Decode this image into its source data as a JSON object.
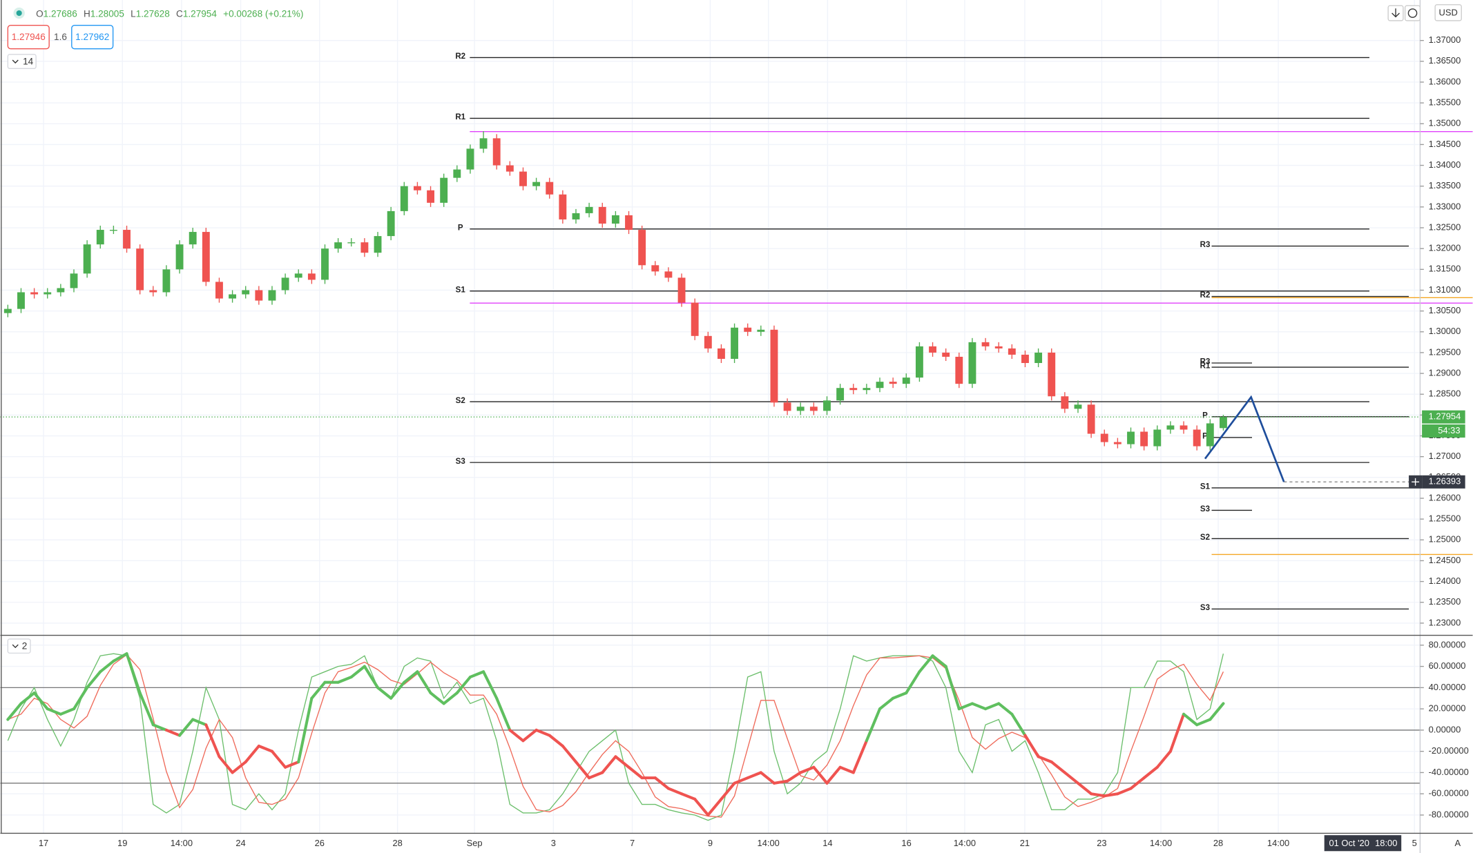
{
  "header": {
    "ohlc_labels": [
      "O",
      "H",
      "L",
      "C"
    ],
    "change": "+0.00268 (+0.21%)",
    "sell": "1.27946",
    "spread": "1.6",
    "buy": "1.27962",
    "indicator_count": "14",
    "currency": "USD",
    "auto": "A"
  },
  "chart_data": [
    {
      "type": "candlestick",
      "up_color": "#4caf50",
      "down_color": "#ef5350",
      "open": [
        1.3045,
        1.3055,
        1.3095,
        1.309,
        1.3095,
        1.3105,
        1.314,
        1.321,
        1.3245,
        1.3245,
        1.32,
        1.31,
        1.3095,
        1.315,
        1.321,
        1.324,
        1.312,
        1.308,
        1.309,
        1.31,
        1.3075,
        1.31,
        1.313,
        1.314,
        1.3125,
        1.32,
        1.3215,
        1.3215,
        1.319,
        1.323,
        1.329,
        1.335,
        1.334,
        1.331,
        1.337,
        1.339,
        1.344,
        1.3465,
        1.34,
        1.3385,
        1.335,
        1.336,
        1.333,
        1.327,
        1.3285,
        1.33,
        1.326,
        1.328,
        1.3245,
        1.316,
        1.3145,
        1.313,
        1.307,
        1.299,
        1.296,
        1.2935,
        1.301,
        1.3,
        1.3005,
        1.283,
        1.281,
        1.282,
        1.281,
        1.2835,
        1.2865,
        1.286,
        1.2865,
        1.288,
        1.2875,
        1.289,
        1.2965,
        1.295,
        1.294,
        1.2875,
        1.2975,
        1.2965,
        1.296,
        1.2945,
        1.2925,
        1.295,
        1.2845,
        1.2815,
        1.2825,
        1.2755,
        1.2735,
        1.273,
        1.276,
        1.2725,
        1.2765,
        1.2775,
        1.2765,
        1.2725,
        1.27686
      ],
      "high": [
        1.3065,
        1.3105,
        1.3105,
        1.3105,
        1.3115,
        1.315,
        1.322,
        1.3255,
        1.3255,
        1.3255,
        1.321,
        1.311,
        1.316,
        1.322,
        1.325,
        1.325,
        1.313,
        1.31,
        1.311,
        1.311,
        1.311,
        1.314,
        1.315,
        1.315,
        1.321,
        1.3225,
        1.3225,
        1.3225,
        1.324,
        1.33,
        1.336,
        1.336,
        1.335,
        1.338,
        1.34,
        1.345,
        1.3482,
        1.3475,
        1.341,
        1.3395,
        1.337,
        1.337,
        1.334,
        1.3295,
        1.331,
        1.331,
        1.329,
        1.329,
        1.3255,
        1.317,
        1.3155,
        1.314,
        1.308,
        1.3,
        1.297,
        1.302,
        1.302,
        1.3015,
        1.3015,
        1.284,
        1.283,
        1.283,
        1.2845,
        1.2875,
        1.2875,
        1.2875,
        1.289,
        1.289,
        1.29,
        1.2975,
        1.2975,
        1.296,
        1.295,
        1.2985,
        1.2985,
        1.2975,
        1.297,
        1.2955,
        1.296,
        1.296,
        1.2855,
        1.2835,
        1.2835,
        1.2765,
        1.2745,
        1.277,
        1.277,
        1.2775,
        1.2785,
        1.2785,
        1.2775,
        1.279,
        1.28005
      ],
      "low": [
        1.3035,
        1.3045,
        1.308,
        1.308,
        1.3085,
        1.3095,
        1.313,
        1.32,
        1.3235,
        1.319,
        1.309,
        1.3085,
        1.3085,
        1.314,
        1.32,
        1.311,
        1.307,
        1.307,
        1.308,
        1.3065,
        1.3065,
        1.309,
        1.312,
        1.3115,
        1.3115,
        1.319,
        1.3205,
        1.318,
        1.318,
        1.322,
        1.328,
        1.333,
        1.33,
        1.33,
        1.336,
        1.338,
        1.343,
        1.339,
        1.3375,
        1.334,
        1.334,
        1.332,
        1.326,
        1.326,
        1.3275,
        1.325,
        1.325,
        1.3235,
        1.315,
        1.3135,
        1.312,
        1.306,
        1.298,
        1.295,
        1.2925,
        1.2925,
        1.299,
        1.299,
        1.282,
        1.28,
        1.28,
        1.28,
        1.28,
        1.2825,
        1.285,
        1.285,
        1.2855,
        1.2865,
        1.2865,
        1.288,
        1.294,
        1.293,
        1.2865,
        1.2865,
        1.2955,
        1.295,
        1.2935,
        1.2915,
        1.2915,
        1.2835,
        1.2805,
        1.2805,
        1.2745,
        1.2725,
        1.272,
        1.272,
        1.2715,
        1.2715,
        1.2755,
        1.2755,
        1.2715,
        1.2715,
        1.27628
      ],
      "close": [
        1.3055,
        1.3095,
        1.309,
        1.3095,
        1.3105,
        1.314,
        1.321,
        1.3245,
        1.3245,
        1.32,
        1.31,
        1.3095,
        1.315,
        1.321,
        1.324,
        1.312,
        1.308,
        1.309,
        1.31,
        1.3075,
        1.31,
        1.313,
        1.314,
        1.3125,
        1.32,
        1.3215,
        1.3215,
        1.319,
        1.323,
        1.329,
        1.335,
        1.334,
        1.331,
        1.337,
        1.339,
        1.344,
        1.3465,
        1.34,
        1.3385,
        1.335,
        1.336,
        1.333,
        1.327,
        1.3285,
        1.33,
        1.326,
        1.328,
        1.3245,
        1.316,
        1.3145,
        1.313,
        1.307,
        1.299,
        1.296,
        1.2935,
        1.301,
        1.3,
        1.3005,
        1.283,
        1.281,
        1.282,
        1.281,
        1.2835,
        1.2865,
        1.286,
        1.2865,
        1.288,
        1.2875,
        1.289,
        1.2965,
        1.295,
        1.294,
        1.2875,
        1.2975,
        1.2965,
        1.296,
        1.2945,
        1.2925,
        1.295,
        1.2845,
        1.2815,
        1.2825,
        1.2755,
        1.2735,
        1.273,
        1.276,
        1.2725,
        1.2765,
        1.2775,
        1.2765,
        1.2725,
        1.278,
        1.27954
      ],
      "countdown": "54:33",
      "ylim": [
        1.2273,
        1.3786
      ],
      "yticks": [
        {
          "value": 1.23,
          "label": "1.23000"
        },
        {
          "value": 1.235,
          "label": "1.23500"
        },
        {
          "value": 1.24,
          "label": "1.24000"
        },
        {
          "value": 1.245,
          "label": "1.24500"
        },
        {
          "value": 1.25,
          "label": "1.25000"
        },
        {
          "value": 1.255,
          "label": "1.25500"
        },
        {
          "value": 1.26,
          "label": "1.26000"
        },
        {
          "value": 1.265,
          "label": "1.26500"
        },
        {
          "value": 1.27,
          "label": "1.27000"
        },
        {
          "value": 1.275,
          "label": "1.27500"
        },
        {
          "value": 1.28,
          "label": "1.28000"
        },
        {
          "value": 1.285,
          "label": "1.28500"
        },
        {
          "value": 1.29,
          "label": "1.29000"
        },
        {
          "value": 1.295,
          "label": "1.29500"
        },
        {
          "value": 1.3,
          "label": "1.30000"
        },
        {
          "value": 1.305,
          "label": "1.30500"
        },
        {
          "value": 1.31,
          "label": "1.31000"
        },
        {
          "value": 1.315,
          "label": "1.31500"
        },
        {
          "value": 1.32,
          "label": "1.32000"
        },
        {
          "value": 1.325,
          "label": "1.32500"
        },
        {
          "value": 1.33,
          "label": "1.33000"
        },
        {
          "value": 1.335,
          "label": "1.33500"
        },
        {
          "value": 1.34,
          "label": "1.34000"
        },
        {
          "value": 1.345,
          "label": "1.34500"
        },
        {
          "value": 1.35,
          "label": "1.35000"
        },
        {
          "value": 1.355,
          "label": "1.35500"
        },
        {
          "value": 1.36,
          "label": "1.36000"
        },
        {
          "value": 1.365,
          "label": "1.36500"
        },
        {
          "value": 1.37,
          "label": "1.37000"
        }
      ],
      "grid": true,
      "x_labels": [
        "17",
        "19",
        "14:00",
        "24",
        "26",
        "28",
        "Sep",
        "3",
        "7",
        "9",
        "14:00",
        "14",
        "16",
        "14:00",
        "21",
        "23",
        "14:00",
        "28",
        "14:00",
        "5"
      ],
      "x_cursor_labels": [
        "01 Oct '20",
        "18:00"
      ],
      "pivots": [
        [
          {
            "name": "R2",
            "value": 1.3659
          },
          {
            "name": "R1",
            "value": 1.3513
          },
          {
            "name": "P",
            "value": 1.3247
          },
          {
            "name": "S1",
            "value": 1.3098
          },
          {
            "name": "S2",
            "value": 1.2832
          },
          {
            "name": "S3",
            "value": 1.2686
          }
        ],
        [
          {
            "name": "R3",
            "value": 1.3206
          },
          {
            "name": "R2",
            "value": 1.3085
          },
          {
            "name": "R1",
            "value": 1.2915
          },
          {
            "name": "P",
            "value": 1.2796
          },
          {
            "name": "S1",
            "value": 1.2625
          },
          {
            "name": "S2",
            "value": 1.2503
          },
          {
            "name": "S3",
            "value": 1.2334
          }
        ],
        [
          {
            "name": "R3",
            "value": 1.2925
          },
          {
            "name": "P",
            "value": 1.2746
          },
          {
            "name": "S3",
            "value": 1.2571
          }
        ]
      ],
      "pivot_color": "#222222",
      "level_lines": [
        {
          "value": 1.3481,
          "color": "#e040fb"
        },
        {
          "value": 1.3069,
          "color": "#e040fb"
        },
        {
          "value": 1.3082,
          "color": "#f5a623"
        },
        {
          "value": 1.2465,
          "color": "#f5a623"
        }
      ],
      "drawing": {
        "color": "#1f4e9c",
        "values": [
          1.2695,
          1.2843,
          1.26393
        ]
      }
    },
    {
      "type": "line",
      "pane_label": "2",
      "ylim": [
        -97.2,
        89.3
      ],
      "yticks": [
        {
          "value": 80,
          "label": "80.00000"
        },
        {
          "value": 60,
          "label": "60.00000"
        },
        {
          "value": 40,
          "label": "40.00000"
        },
        {
          "value": 20,
          "label": "20.00000"
        },
        {
          "value": 0,
          "label": "0.00000"
        },
        {
          "value": -20,
          "label": "-20.00000"
        },
        {
          "value": -40,
          "label": "-40.00000"
        },
        {
          "value": -60,
          "label": "-60.00000"
        },
        {
          "value": -80,
          "label": "-80.00000"
        }
      ],
      "levels": [
        40,
        0,
        -50
      ],
      "series": [
        {
          "color": "#6cbf6c",
          "width": 1,
          "values": [
            -10,
            20,
            40,
            10,
            -15,
            10,
            45,
            70,
            72,
            70,
            30,
            -70,
            -78,
            -70,
            -20,
            40,
            10,
            -70,
            -75,
            -60,
            -75,
            -60,
            0,
            50,
            55,
            60,
            62,
            70,
            40,
            30,
            60,
            68,
            65,
            30,
            45,
            25,
            30,
            -10,
            -70,
            -78,
            -78,
            -75,
            -60,
            -40,
            -20,
            -10,
            0,
            -50,
            -70,
            -70,
            -75,
            -78,
            -80,
            -85,
            -80,
            -20,
            50,
            55,
            -20,
            -60,
            -50,
            -30,
            -20,
            20,
            70,
            65,
            68,
            70,
            70,
            70,
            65,
            40,
            -20,
            -40,
            5,
            10,
            -20,
            -10,
            -40,
            -75,
            -75,
            -65,
            -65,
            -60,
            -40,
            40,
            40,
            65,
            65,
            55,
            10,
            20,
            72
          ]
        },
        {
          "color": "#ef6a5a",
          "width": 1,
          "values": [
            10,
            15,
            30,
            25,
            10,
            2,
            13,
            42,
            62,
            71,
            57,
            11,
            -39,
            -73,
            -56,
            -17,
            10,
            -7,
            -45,
            -68,
            -70,
            -65,
            -45,
            -3,
            35,
            55,
            59,
            64,
            57,
            47,
            43,
            53,
            64,
            54,
            47,
            33,
            33,
            15,
            -17,
            -53,
            -75,
            -77,
            -71,
            -58,
            -40,
            -23,
            -10,
            -20,
            -40,
            -63,
            -72,
            -74,
            -78,
            -81,
            -82,
            -62,
            -17,
            28,
            28,
            -8,
            -43,
            -47,
            -33,
            -10,
            23,
            52,
            68,
            68,
            69,
            70,
            68,
            58,
            28,
            -7,
            -18,
            -8,
            -2,
            -7,
            -23,
            -42,
            -63,
            -72,
            -68,
            -63,
            -55,
            -20,
            13,
            48,
            57,
            62,
            43,
            28,
            55
          ]
        },
        {
          "color": "#5fbf5f",
          "negative_color": "#ef5350",
          "width": 3,
          "values": [
            10,
            25,
            35,
            20,
            15,
            20,
            40,
            55,
            65,
            72,
            35,
            5,
            0,
            -5,
            10,
            5,
            -25,
            -40,
            -30,
            -15,
            -20,
            -35,
            -30,
            30,
            45,
            45,
            50,
            60,
            40,
            30,
            45,
            55,
            35,
            25,
            35,
            50,
            55,
            30,
            0,
            -10,
            0,
            -5,
            -15,
            -30,
            -45,
            -40,
            -25,
            -35,
            -45,
            -45,
            -55,
            -60,
            -65,
            -80,
            -65,
            -50,
            -45,
            -40,
            -50,
            -48,
            -40,
            -35,
            -50,
            -35,
            -40,
            -10,
            20,
            30,
            35,
            55,
            70,
            60,
            20,
            25,
            20,
            25,
            15,
            -5,
            -25,
            -30,
            -40,
            -50,
            -60,
            -62,
            -60,
            -55,
            -45,
            -35,
            -20,
            15,
            5,
            10,
            25
          ]
        }
      ]
    }
  ]
}
